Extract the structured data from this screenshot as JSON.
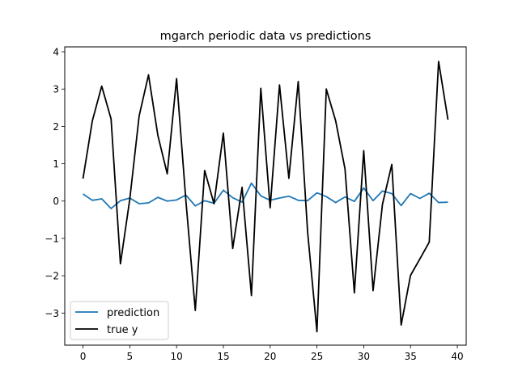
{
  "chart_data": {
    "type": "line",
    "title": "mgarch periodic data vs predictions",
    "xlabel": "",
    "ylabel": "",
    "xlim": [
      -1.95,
      40.95
    ],
    "ylim": [
      -3.86,
      4.13
    ],
    "xticks": [
      0,
      5,
      10,
      15,
      20,
      25,
      30,
      35,
      40
    ],
    "yticks": [
      -3,
      -2,
      -1,
      0,
      1,
      2,
      3,
      4
    ],
    "grid": false,
    "legend": {
      "placement": "lower-left"
    },
    "x": [
      0,
      1,
      2,
      3,
      4,
      5,
      6,
      7,
      8,
      9,
      10,
      11,
      12,
      13,
      14,
      15,
      16,
      17,
      18,
      19,
      20,
      21,
      22,
      23,
      24,
      25,
      26,
      27,
      28,
      29,
      30,
      31,
      32,
      33,
      34,
      35,
      36,
      37,
      38,
      39
    ],
    "series": [
      {
        "name": "prediction",
        "color": "#1f77b4",
        "values": [
          0.19,
          0.02,
          0.06,
          -0.2,
          0.01,
          0.08,
          -0.07,
          -0.05,
          0.1,
          0.0,
          0.03,
          0.16,
          -0.13,
          0.01,
          -0.06,
          0.29,
          0.09,
          -0.03,
          0.48,
          0.14,
          0.02,
          0.08,
          0.13,
          0.02,
          0.01,
          0.22,
          0.12,
          -0.04,
          0.11,
          -0.01,
          0.35,
          0.01,
          0.27,
          0.2,
          -0.12,
          0.2,
          0.07,
          0.21,
          -0.04,
          -0.03
        ]
      },
      {
        "name": "true y",
        "color": "#000000",
        "values": [
          0.6,
          2.15,
          3.08,
          2.2,
          -1.68,
          0.05,
          2.28,
          3.38,
          1.76,
          0.73,
          3.28,
          0.0,
          -2.93,
          0.82,
          -0.07,
          1.82,
          -1.27,
          0.37,
          -2.53,
          3.02,
          -0.18,
          3.11,
          0.61,
          3.2,
          -0.82,
          -3.5,
          3.0,
          2.15,
          0.86,
          -2.46,
          1.35,
          -2.4,
          -0.09,
          0.98,
          -3.32,
          -1.99,
          -1.55,
          -1.1,
          3.74,
          2.18
        ]
      }
    ]
  }
}
